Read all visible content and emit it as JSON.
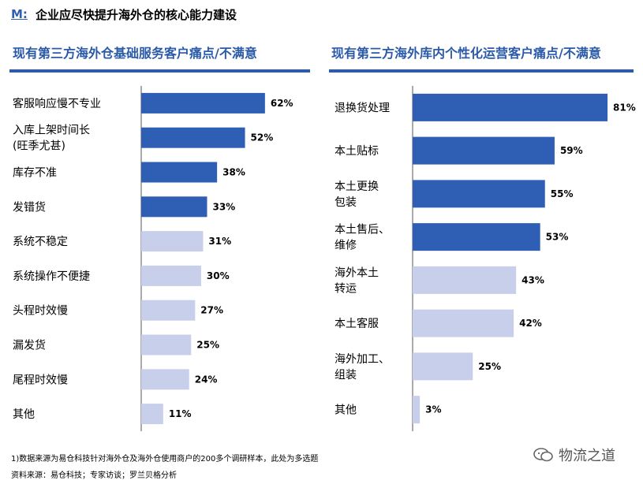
{
  "header": {
    "brand": "M:",
    "title": "企业应尽快提升海外仓的核心能力建设"
  },
  "colors": {
    "dark_bar": "#2e5fb5",
    "light_bar": "#c8cfea",
    "title": "#2a5aa8",
    "axis": "#555555"
  },
  "chart_data": [
    {
      "type": "bar",
      "orientation": "horizontal",
      "title": "现有第三方海外仓基础服务客户痛点/不满意",
      "categories": [
        "客服响应慢不专业",
        "入库上架时间长\n(旺季尤甚)",
        "库存不准",
        "发错货",
        "系统不稳定",
        "系统操作不便捷",
        "头程时效慢",
        "漏发货",
        "尾程时效慢",
        "其他"
      ],
      "values": [
        62,
        52,
        38,
        33,
        31,
        30,
        27,
        25,
        24,
        11
      ],
      "labels": [
        "62%",
        "52%",
        "38%",
        "33%",
        "31%",
        "30%",
        "27%",
        "25%",
        "24%",
        "11%"
      ],
      "highlight": [
        true,
        true,
        true,
        true,
        false,
        false,
        false,
        false,
        false,
        false
      ],
      "unit": "%"
    },
    {
      "type": "bar",
      "orientation": "horizontal",
      "title": "现有第三方海外库内个性化运营客户痛点/不满意",
      "categories": [
        "退换货处理",
        "本土贴标",
        "本土更换\n包装",
        "本土售后、\n维修",
        "海外本土\n转运",
        "本土客服",
        "海外加工、\n组装",
        "其他"
      ],
      "values": [
        81,
        59,
        55,
        53,
        43,
        42,
        25,
        3
      ],
      "labels": [
        "81%",
        "59%",
        "55%",
        "53%",
        "43%",
        "42%",
        "25%",
        "3%"
      ],
      "highlight": [
        true,
        true,
        true,
        true,
        false,
        false,
        false,
        false
      ],
      "unit": "%"
    }
  ],
  "footnotes": {
    "note": "1)数据来源为易仓科技针对海外仓及海外仓使用商户的200多个调研样本，此处为多选题",
    "source": "资料来源：易仓科技；专家访谈；罗兰贝格分析"
  },
  "watermark": {
    "text": "物流之道",
    "icon": "wechat-icon"
  }
}
